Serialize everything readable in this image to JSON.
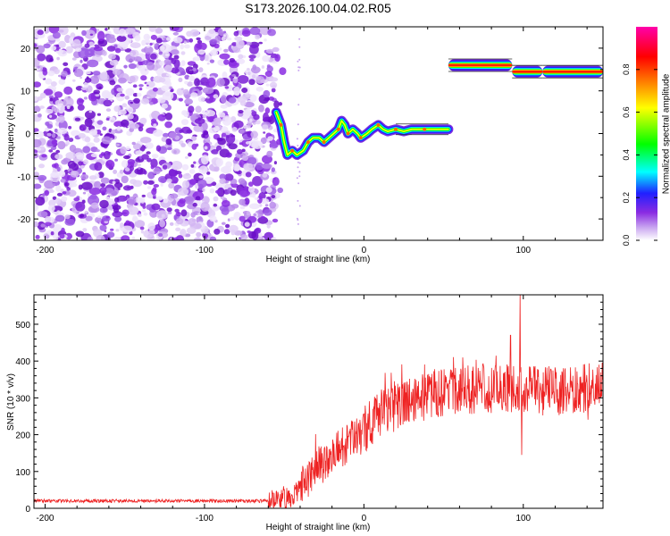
{
  "title": "S173.2026.100.04.02.R05",
  "chart_data": [
    {
      "type": "heatmap",
      "name": "spectrogram",
      "xlabel": "Height of straight line (km)",
      "ylabel": "Frequency (Hz)",
      "xlim": [
        -207,
        150
      ],
      "ylim": [
        -25,
        25
      ],
      "xticks": [
        -200,
        -100,
        0,
        100
      ],
      "yticks": [
        -20,
        -10,
        0,
        10,
        20
      ],
      "xtick_labels": [
        "-200",
        "-100",
        "0",
        "100"
      ],
      "ytick_labels": [
        "-20",
        "-10",
        "0",
        "10",
        "20"
      ],
      "noise_region_x": [
        -207,
        -55
      ],
      "ridge": [
        {
          "x": -55,
          "y": 5
        },
        {
          "x": -52,
          "y": 2
        },
        {
          "x": -50,
          "y": -2
        },
        {
          "x": -48,
          "y": -5
        },
        {
          "x": -45,
          "y": -4
        },
        {
          "x": -42,
          "y": -5
        },
        {
          "x": -38,
          "y": -4
        },
        {
          "x": -35,
          "y": -2
        },
        {
          "x": -32,
          "y": -1
        },
        {
          "x": -28,
          "y": -1
        },
        {
          "x": -25,
          "y": -2
        },
        {
          "x": -22,
          "y": -1
        },
        {
          "x": -19,
          "y": 0
        },
        {
          "x": -16,
          "y": 1
        },
        {
          "x": -14,
          "y": 3
        },
        {
          "x": -12,
          "y": 2
        },
        {
          "x": -10,
          "y": 0
        },
        {
          "x": -7,
          "y": 1
        },
        {
          "x": -4,
          "y": 0
        },
        {
          "x": -2,
          "y": -1
        },
        {
          "x": 2,
          "y": 0
        },
        {
          "x": 5,
          "y": 1
        },
        {
          "x": 9,
          "y": 2
        },
        {
          "x": 12,
          "y": 1
        },
        {
          "x": 15,
          "y": 0.5
        },
        {
          "x": 20,
          "y": 1
        },
        {
          "x": 25,
          "y": 0.5
        },
        {
          "x": 30,
          "y": 1
        },
        {
          "x": 38,
          "y": 1
        },
        {
          "x": 45,
          "y": 1
        },
        {
          "x": 53,
          "y": 1
        }
      ],
      "bands": [
        {
          "x_start": 53,
          "x_end": 93,
          "y": 16
        },
        {
          "x_start": 93,
          "x_end": 112,
          "y": 14.5
        },
        {
          "x_start": 112,
          "x_end": 150,
          "y": 14.5
        }
      ],
      "colorbar": {
        "label": "Normalized spectral amplitude",
        "range": [
          0,
          1
        ],
        "ticks": [
          0.0,
          0.2,
          0.4,
          0.6,
          0.8
        ],
        "tick_labels": [
          "0.0",
          "0.2",
          "0.4",
          "0.6",
          "0.8"
        ],
        "colors": [
          "#ffffff",
          "#9b30ff",
          "#5500ff",
          "#0000ff",
          "#00ffff",
          "#00ff00",
          "#ffff00",
          "#ff8000",
          "#ff0000",
          "#ff00aa"
        ]
      }
    },
    {
      "type": "line",
      "name": "snr",
      "xlabel": "Height of straight line (km)",
      "ylabel": "SNR (10 * v/v)",
      "xlim": [
        -207,
        150
      ],
      "ylim": [
        0,
        580
      ],
      "xticks": [
        -200,
        -100,
        0,
        100
      ],
      "yticks": [
        0,
        100,
        200,
        300,
        400,
        500
      ],
      "xtick_labels": [
        "-200",
        "-100",
        "0",
        "100"
      ],
      "ytick_labels": [
        "0",
        "100",
        "200",
        "300",
        "400",
        "500"
      ],
      "line_color": "#ee2222",
      "trend": [
        {
          "x": -207,
          "y": 20
        },
        {
          "x": -60,
          "y": 20
        },
        {
          "x": -45,
          "y": 25
        },
        {
          "x": -40,
          "y": 60
        },
        {
          "x": -30,
          "y": 110
        },
        {
          "x": -15,
          "y": 160
        },
        {
          "x": 0,
          "y": 215
        },
        {
          "x": 15,
          "y": 270
        },
        {
          "x": 30,
          "y": 300
        },
        {
          "x": 50,
          "y": 315
        },
        {
          "x": 75,
          "y": 325
        },
        {
          "x": 100,
          "y": 320
        },
        {
          "x": 125,
          "y": 320
        },
        {
          "x": 150,
          "y": 330
        }
      ],
      "spikes": [
        {
          "x": 98,
          "y": 580
        },
        {
          "x": 92,
          "y": 470
        },
        {
          "x": 99,
          "y": 145
        },
        {
          "x": 62,
          "y": 410
        },
        {
          "x": 150,
          "y": 405
        }
      ]
    }
  ]
}
